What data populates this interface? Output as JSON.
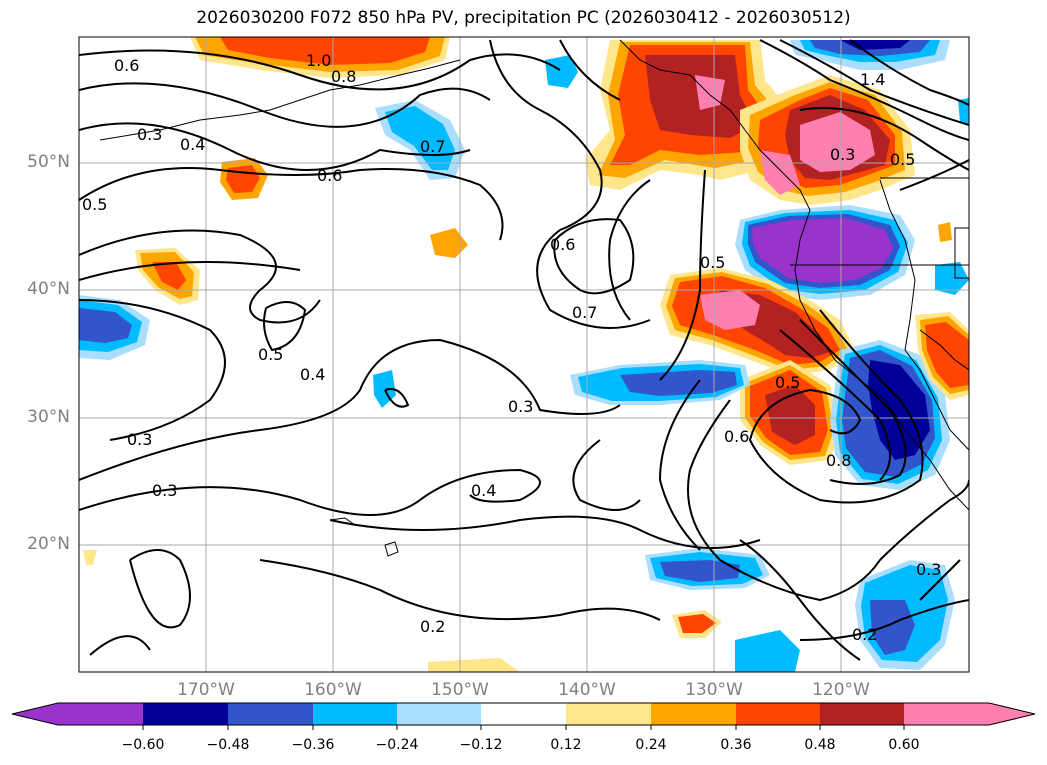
{
  "title": "2026030200 F072 850 hPa PV, precipitation PC (2026030412 - 2026030512)",
  "axes": {
    "lat_labels": [
      "50°N",
      "40°N",
      "30°N",
      "20°N"
    ],
    "lon_labels": [
      "170°W",
      "160°W",
      "150°W",
      "140°W",
      "130°W",
      "120°W"
    ]
  },
  "contour_labels": [
    "0.6",
    "1.0",
    "0.8",
    "0.4",
    "0.3",
    "0.7",
    "0.6",
    "0.5",
    "0.6",
    "0.5",
    "0.7",
    "0.5",
    "0.4",
    "0.3",
    "0.3",
    "0.3",
    "0.4",
    "0.5",
    "0.6",
    "0.8",
    "0.2",
    "0.2",
    "0.3",
    "1.4",
    "0.3",
    "0.5"
  ],
  "colorbar": {
    "ticks": [
      "−0.60",
      "−0.48",
      "−0.36",
      "−0.24",
      "−0.12",
      "0.12",
      "0.24",
      "0.36",
      "0.48",
      "0.60"
    ],
    "colors": [
      "#9933cc",
      "#000099",
      "#3355cc",
      "#00bbff",
      "#aadeff",
      "#ffffff",
      "#ffe68a",
      "#ffa500",
      "#ff4500",
      "#b22222",
      "#ff80b0"
    ]
  },
  "colors": {
    "purple": "#9933cc",
    "navy": "#000099",
    "blue": "#3355cc",
    "cyan": "#00bbff",
    "lightblue": "#aadeff",
    "yellow": "#ffe68a",
    "orange": "#ffa500",
    "redorange": "#ff4500",
    "darkred": "#b22222",
    "pink": "#ff80b0"
  }
}
